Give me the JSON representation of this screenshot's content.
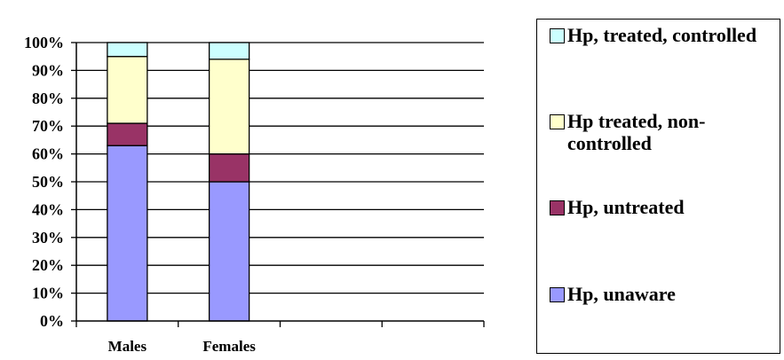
{
  "chart_data": {
    "type": "bar",
    "stacked": true,
    "percent": true,
    "categories": [
      "Males",
      "Females"
    ],
    "series": [
      {
        "name": "Hp, unaware",
        "color": "#9999ff",
        "values": [
          63,
          50
        ]
      },
      {
        "name": "Hp, untreated",
        "color": "#993366",
        "values": [
          8,
          10
        ]
      },
      {
        "name": "Hp treated, non-controlled",
        "color": "#ffffcc",
        "values": [
          24,
          34
        ]
      },
      {
        "name": "Hp, treated, controlled",
        "color": "#ccffff",
        "values": [
          5,
          6
        ]
      }
    ],
    "ylim": [
      0,
      100
    ],
    "yticks": [
      "0%",
      "10%",
      "20%",
      "30%",
      "40%",
      "50%",
      "60%",
      "70%",
      "80%",
      "90%",
      "100%"
    ],
    "title": "",
    "xlabel": "",
    "ylabel": "",
    "grid": true,
    "legend_position": "right"
  },
  "legend": {
    "items": [
      {
        "label": "Hp, treated, controlled",
        "color": "#ccffff"
      },
      {
        "label": "Hp treated, non-controlled",
        "color": "#ffffcc"
      },
      {
        "label": "Hp, untreated",
        "color": "#993366"
      },
      {
        "label": "Hp, unaware",
        "color": "#9999ff"
      }
    ]
  }
}
